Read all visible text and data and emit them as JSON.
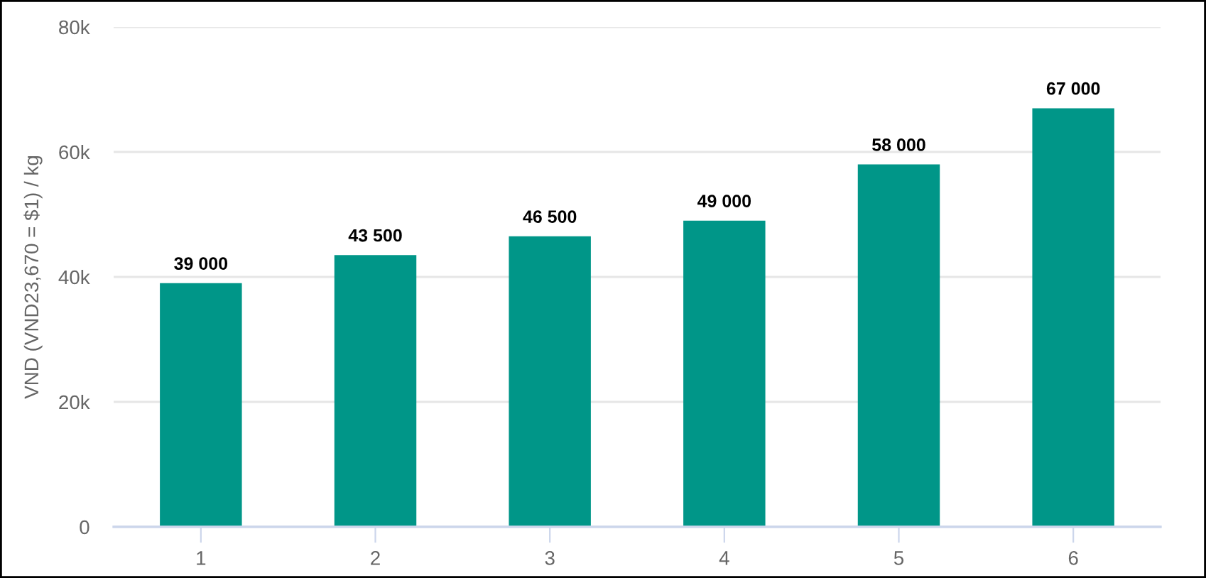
{
  "chart_data": {
    "type": "bar",
    "ylabel": "VND (VND23,670 = $1) / kg",
    "categories": [
      "1",
      "2",
      "3",
      "4",
      "5",
      "6"
    ],
    "values": [
      39000,
      43500,
      46500,
      49000,
      58000,
      67000
    ],
    "value_labels": [
      "39 000",
      "43 500",
      "46 500",
      "49 000",
      "58 000",
      "67 000"
    ],
    "color": "#009688",
    "ylim": [
      0,
      80000
    ],
    "yticks": [
      {
        "value": 0,
        "label": "0"
      },
      {
        "value": 20000,
        "label": "20k"
      },
      {
        "value": 40000,
        "label": "40k"
      },
      {
        "value": 60000,
        "label": "60k"
      },
      {
        "value": 80000,
        "label": "80k"
      }
    ],
    "grid": "y",
    "legend": false
  }
}
